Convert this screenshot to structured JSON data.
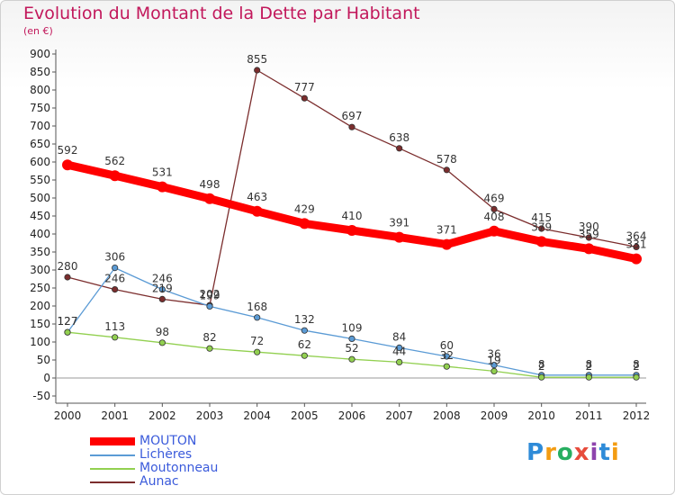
{
  "title": "Evolution du Montant de la Dette par Habitant",
  "subtitle": "(en €)",
  "brand": {
    "letters": [
      "P",
      "r",
      "o",
      "x",
      "i",
      "t",
      "i"
    ],
    "colors": [
      "#2e8bd8",
      "#f39c12",
      "#27ae60",
      "#e74c3c",
      "#8e44ad",
      "#2e8bd8",
      "#f39c12"
    ]
  },
  "chart_data": {
    "type": "line",
    "title": "Evolution du Montant de la Dette par Habitant",
    "subtitle": "(en €)",
    "x": [
      2000,
      2001,
      2002,
      2003,
      2004,
      2005,
      2006,
      2007,
      2008,
      2009,
      2010,
      2011,
      2012
    ],
    "ylim": [
      -50,
      900
    ],
    "yticks": [
      -50,
      0,
      50,
      100,
      150,
      200,
      250,
      300,
      350,
      400,
      450,
      500,
      550,
      600,
      650,
      700,
      750,
      800,
      850,
      900
    ],
    "grid": false,
    "legend": "bottom-left",
    "series": [
      {
        "name": "MOUTON",
        "color": "#ff0000",
        "values": [
          592,
          562,
          531,
          498,
          463,
          429,
          410,
          391,
          371,
          408,
          379,
          359,
          331
        ],
        "labels": [
          "592",
          "562",
          "531",
          "498",
          "463",
          "429",
          "410",
          "391",
          "371",
          "408",
          "379",
          "359",
          "331"
        ]
      },
      {
        "name": "Lichères",
        "color": "#5b9bd5",
        "values": [
          127,
          306,
          246,
          199,
          168,
          132,
          109,
          84,
          60,
          36,
          8,
          8,
          8
        ],
        "labels": [
          "127",
          "306",
          "246",
          "199",
          "168",
          "132",
          "109",
          "84",
          "60",
          "36",
          "8",
          "8",
          "8"
        ]
      },
      {
        "name": "Moutonneau",
        "color": "#92d050",
        "values": [
          127,
          113,
          98,
          82,
          72,
          62,
          52,
          44,
          32,
          19,
          2,
          2,
          2
        ],
        "labels": [
          "127",
          "113",
          "98",
          "82",
          "72",
          "62",
          "52",
          "44",
          "32",
          "19",
          "2",
          "2",
          "2"
        ]
      },
      {
        "name": "Aunac",
        "color": "#7b2d2d",
        "values": [
          280,
          246,
          219,
          202,
          855,
          777,
          697,
          638,
          578,
          469,
          415,
          390,
          364
        ],
        "labels": [
          "280",
          "246",
          "219",
          "202",
          "855",
          "777",
          "697",
          "638",
          "578",
          "469",
          "415",
          "390",
          "364"
        ]
      }
    ]
  }
}
